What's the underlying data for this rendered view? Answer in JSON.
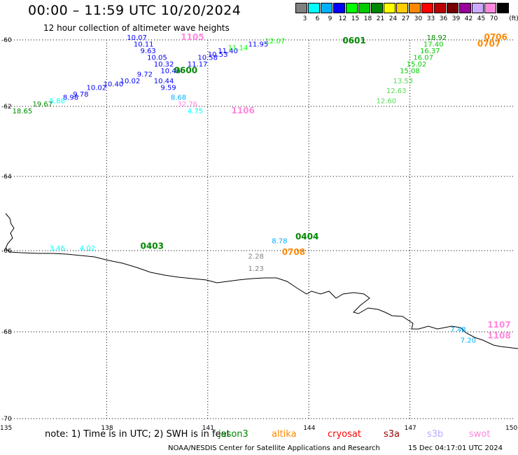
{
  "title": "00:00 – 11:59 UTC 10/20/2024",
  "subtitle": "12 hour collection of altimeter wave heights",
  "legend": {
    "unit": "(ft)",
    "bins": [
      {
        "label": "3",
        "color": "#808080"
      },
      {
        "label": "6",
        "color": "#00ffff"
      },
      {
        "label": "9",
        "color": "#00b0ff"
      },
      {
        "label": "12",
        "color": "#0000ff"
      },
      {
        "label": "15",
        "color": "#00ff00"
      },
      {
        "label": "18",
        "color": "#00cc00"
      },
      {
        "label": "21",
        "color": "#008800"
      },
      {
        "label": "24",
        "color": "#ffff00"
      },
      {
        "label": "27",
        "color": "#ffcc00"
      },
      {
        "label": "30",
        "color": "#ff8800"
      },
      {
        "label": "33",
        "color": "#ff0000"
      },
      {
        "label": "36",
        "color": "#bb0000"
      },
      {
        "label": "39",
        "color": "#770000"
      },
      {
        "label": "42",
        "color": "#990099"
      },
      {
        "label": "45",
        "color": "#ccaaff"
      },
      {
        "label": "70",
        "color": "#ff88dd"
      },
      {
        "label": "",
        "color": "#000000"
      }
    ]
  },
  "axes": {
    "lat_labels": [
      "-60",
      "-62",
      "-64",
      "-66",
      "-68",
      "-70"
    ],
    "lon_labels": [
      "135",
      "138",
      "141",
      "144",
      "147",
      "150"
    ]
  },
  "passes": [
    {
      "label": "1105",
      "lon": 140.2,
      "lat": -60.0,
      "color": "#ff88dd"
    },
    {
      "label": "0601",
      "lon": 145.0,
      "lat": -60.1,
      "color": "#008800"
    },
    {
      "label": "0706",
      "lon": 149.2,
      "lat": -60.0,
      "color": "#ff8800"
    },
    {
      "label": "0707",
      "lon": 149.0,
      "lat": -60.2,
      "color": "#ff8800"
    },
    {
      "label": "0600",
      "lon": 140.0,
      "lat": -61.0,
      "color": "#008800"
    },
    {
      "label": "1106",
      "lon": 141.7,
      "lat": -62.2,
      "color": "#ff88dd"
    },
    {
      "label": "0403",
      "lon": 139.0,
      "lat": -65.95,
      "color": "#008800"
    },
    {
      "label": "0404",
      "lon": 143.6,
      "lat": -65.7,
      "color": "#008800"
    },
    {
      "label": "0708",
      "lon": 143.2,
      "lat": -66.1,
      "color": "#ff8800"
    },
    {
      "label": "1107",
      "lon": 149.3,
      "lat": -67.9,
      "color": "#ff88dd"
    },
    {
      "label": "1108",
      "lon": 149.3,
      "lat": -68.15,
      "color": "#ff88dd"
    }
  ],
  "observations": [
    {
      "value": "10.07",
      "lon": 138.6,
      "lat": -60.0,
      "color": "#0000ff"
    },
    {
      "value": "10.11",
      "lon": 138.8,
      "lat": -60.2,
      "color": "#0000ff"
    },
    {
      "value": "9.63",
      "lon": 139.0,
      "lat": -60.4,
      "color": "#0000ff"
    },
    {
      "value": "10.05",
      "lon": 139.2,
      "lat": -60.6,
      "color": "#0000ff"
    },
    {
      "value": "10.32",
      "lon": 139.4,
      "lat": -60.8,
      "color": "#0000ff"
    },
    {
      "value": "11.17",
      "lon": 140.4,
      "lat": -60.8,
      "color": "#0000ff"
    },
    {
      "value": "10.58",
      "lon": 140.7,
      "lat": -60.6,
      "color": "#0000ff"
    },
    {
      "value": "10.53",
      "lon": 141.0,
      "lat": -60.5,
      "color": "#0000ff"
    },
    {
      "value": "11.40",
      "lon": 141.3,
      "lat": -60.4,
      "color": "#0000ff"
    },
    {
      "value": "11.14",
      "lon": 141.6,
      "lat": -60.3,
      "color": "#00ff00"
    },
    {
      "value": "11.95",
      "lon": 142.2,
      "lat": -60.2,
      "color": "#0000ff"
    },
    {
      "value": "12.07",
      "lon": 142.7,
      "lat": -60.1,
      "color": "#00ff00"
    },
    {
      "value": "10.46",
      "lon": 139.6,
      "lat": -61.0,
      "color": "#0000ff"
    },
    {
      "value": "9.72",
      "lon": 138.9,
      "lat": -61.1,
      "color": "#0000ff"
    },
    {
      "value": "10.44",
      "lon": 139.4,
      "lat": -61.3,
      "color": "#0000ff"
    },
    {
      "value": "10.02",
      "lon": 138.4,
      "lat": -61.3,
      "color": "#0000ff"
    },
    {
      "value": "9.59",
      "lon": 139.6,
      "lat": -61.5,
      "color": "#0000ff"
    },
    {
      "value": "10.40",
      "lon": 137.9,
      "lat": -61.4,
      "color": "#0000ff"
    },
    {
      "value": "10.02",
      "lon": 137.4,
      "lat": -61.5,
      "color": "#0000ff"
    },
    {
      "value": "9.78",
      "lon": 137.0,
      "lat": -61.7,
      "color": "#0000ff"
    },
    {
      "value": "8.98",
      "lon": 136.7,
      "lat": -61.8,
      "color": "#0000ff"
    },
    {
      "value": "8.68",
      "lon": 139.9,
      "lat": -61.8,
      "color": "#00b0ff"
    },
    {
      "value": "5.88",
      "lon": 136.3,
      "lat": -61.9,
      "color": "#00ffff"
    },
    {
      "value": "19.67",
      "lon": 135.8,
      "lat": -62.0,
      "color": "#008800"
    },
    {
      "value": "32.76",
      "lon": 140.1,
      "lat": -62.0,
      "color": "#ff88dd"
    },
    {
      "value": "18.65",
      "lon": 135.2,
      "lat": -62.2,
      "color": "#008800"
    },
    {
      "value": "4.75",
      "lon": 140.4,
      "lat": -62.2,
      "color": "#00ffff"
    },
    {
      "value": "18.92",
      "lon": 147.5,
      "lat": -60.0,
      "color": "#008800"
    },
    {
      "value": "17.40",
      "lon": 147.4,
      "lat": -60.2,
      "color": "#00cc00"
    },
    {
      "value": "16.37",
      "lon": 147.3,
      "lat": -60.4,
      "color": "#00cc00"
    },
    {
      "value": "16.07",
      "lon": 147.1,
      "lat": -60.6,
      "color": "#00cc00"
    },
    {
      "value": "15.02",
      "lon": 146.9,
      "lat": -60.8,
      "color": "#00cc00"
    },
    {
      "value": "15.08",
      "lon": 146.7,
      "lat": -61.0,
      "color": "#00cc00"
    },
    {
      "value": "13.53",
      "lon": 146.5,
      "lat": -61.3,
      "color": "#55dd55"
    },
    {
      "value": "12.63",
      "lon": 146.3,
      "lat": -61.6,
      "color": "#55dd55"
    },
    {
      "value": "12.60",
      "lon": 146.0,
      "lat": -61.9,
      "color": "#55dd55"
    },
    {
      "value": "3.46",
      "lon": 136.3,
      "lat": -66.0,
      "color": "#00ffff"
    },
    {
      "value": "4.02",
      "lon": 137.2,
      "lat": -66.0,
      "color": "#00ffff"
    },
    {
      "value": "8.78",
      "lon": 142.9,
      "lat": -65.8,
      "color": "#00b0ff"
    },
    {
      "value": "2.28",
      "lon": 142.2,
      "lat": -66.2,
      "color": "#808080"
    },
    {
      "value": "1.23",
      "lon": 142.2,
      "lat": -66.5,
      "color": "#808080"
    },
    {
      "value": "7.48",
      "lon": 148.2,
      "lat": -68.0,
      "color": "#00b0ff"
    },
    {
      "value": "7.20",
      "lon": 148.5,
      "lat": -68.25,
      "color": "#00b0ff"
    }
  ],
  "note": "note:  1) Time is in UTC;  2) SWH is in feet",
  "satellites": [
    {
      "name": "jason3",
      "color": "#008800"
    },
    {
      "name": "altika",
      "color": "#ff8800"
    },
    {
      "name": "cryosat",
      "color": "#ff0000"
    },
    {
      "name": "s3a",
      "color": "#990000"
    },
    {
      "name": "s3b",
      "color": "#bbaaff"
    },
    {
      "name": "swot",
      "color": "#ff88dd"
    }
  ],
  "footer": "NOAA/NESDIS Center for Satellite Applications and Research",
  "footer_time": "15 Dec 04:17:01 UTC 2024"
}
